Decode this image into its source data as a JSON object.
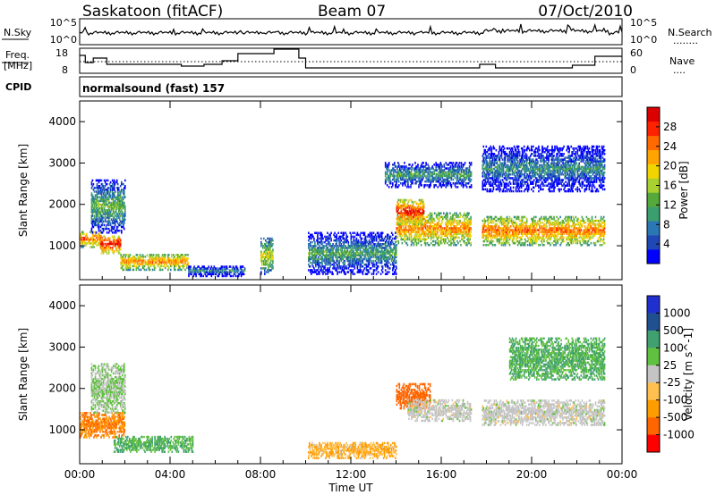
{
  "header": {
    "station": "Saskatoon (fitACF)",
    "beam": "Beam 07",
    "date": "07/Oct/2010"
  },
  "noise_panel": {
    "left_label": "N.Sky",
    "left_ticks": [
      "10^5",
      "10^0"
    ],
    "right_ticks": [
      "10^5",
      "10^0"
    ],
    "right_label": "N.Search",
    "right_legend": "........"
  },
  "freq_panel": {
    "left_label_1": "Freq.",
    "left_label_2": "[MHz]",
    "left_ticks": [
      "18",
      "8"
    ],
    "right_ticks": [
      "60",
      "0"
    ],
    "right_label": "Nave",
    "right_legend": "...."
  },
  "cpid": {
    "label": "CPID",
    "value": "normalsound (fast) 157"
  },
  "chart_data": [
    {
      "type": "heatmap",
      "quantity": "Power",
      "colorbar_label": "Power [dB]",
      "colorbar_ticks": [
        "28",
        "24",
        "20",
        "16",
        "12",
        "8",
        "4"
      ],
      "colorbar_range": [
        0,
        32
      ],
      "ylabel": "Slant Range [km]",
      "yticks": [
        "4000",
        "3000",
        "2000",
        "1000"
      ],
      "ylim": [
        180,
        4500
      ],
      "xlim": [
        0,
        24
      ],
      "data_gaps_hours": [
        [
          7.3,
          8.0
        ],
        [
          8.55,
          9.45
        ],
        [
          9.75,
          10.1
        ],
        [
          17.3,
          17.8
        ]
      ],
      "echo_regions": [
        {
          "t": [
            0,
            1.0
          ],
          "range": [
            950,
            1350
          ],
          "power": 26
        },
        {
          "t": [
            0.9,
            1.8
          ],
          "range": [
            800,
            1250
          ],
          "power": 29
        },
        {
          "t": [
            1.8,
            4.8
          ],
          "range": [
            400,
            800
          ],
          "power": 24
        },
        {
          "t": [
            0.5,
            2.0
          ],
          "range": [
            1300,
            2600
          ],
          "power": 14
        },
        {
          "t": [
            4.8,
            7.3
          ],
          "range": [
            250,
            500
          ],
          "power": 10
        },
        {
          "t": [
            8.0,
            8.55
          ],
          "range": [
            300,
            1200
          ],
          "power": 18
        },
        {
          "t": [
            10.1,
            14.0
          ],
          "range": [
            300,
            1300
          ],
          "power": 12
        },
        {
          "t": [
            14.0,
            17.3
          ],
          "range": [
            1000,
            1800
          ],
          "power": 24
        },
        {
          "t": [
            14.0,
            15.2
          ],
          "range": [
            1500,
            2100
          ],
          "power": 29
        },
        {
          "t": [
            13.5,
            17.3
          ],
          "range": [
            2400,
            3000
          ],
          "power": 12
        },
        {
          "t": [
            17.8,
            23.2
          ],
          "range": [
            1000,
            1700
          ],
          "power": 25
        },
        {
          "t": [
            17.8,
            23.2
          ],
          "range": [
            2300,
            3400
          ],
          "power": 10
        }
      ]
    },
    {
      "type": "heatmap",
      "quantity": "Velocity",
      "colorbar_label": "Velocity [m s^-1]",
      "colorbar_ticks": [
        "1000",
        "500",
        "100",
        "25",
        "-25",
        "-100",
        "-500",
        "-1000"
      ],
      "ylabel": "Slant Range [km]",
      "yticks": [
        "4000",
        "3000",
        "2000",
        "1000"
      ],
      "ylim": [
        180,
        4500
      ],
      "xlim": [
        0,
        24
      ],
      "xticks": [
        "00:00",
        "04:00",
        "08:00",
        "12:00",
        "16:00",
        "20:00",
        "00:00"
      ],
      "xlabel": "Time UT",
      "echo_regions": [
        {
          "t": [
            0,
            2.0
          ],
          "range": [
            800,
            1400
          ],
          "velocity": -100
        },
        {
          "t": [
            1.5,
            5.0
          ],
          "range": [
            450,
            850
          ],
          "velocity": 100
        },
        {
          "t": [
            0.5,
            2.0
          ],
          "range": [
            1400,
            2600
          ],
          "velocity": 25
        },
        {
          "t": [
            10.1,
            14.0
          ],
          "range": [
            300,
            700
          ],
          "velocity": -50
        },
        {
          "t": [
            14.0,
            15.5
          ],
          "range": [
            1500,
            2100
          ],
          "velocity": -400
        },
        {
          "t": [
            14.5,
            17.3
          ],
          "range": [
            1200,
            1700
          ],
          "velocity": 0
        },
        {
          "t": [
            17.8,
            23.2
          ],
          "range": [
            1100,
            1700
          ],
          "velocity": 0
        },
        {
          "t": [
            19.0,
            23.2
          ],
          "range": [
            2200,
            3200
          ],
          "velocity": 100
        }
      ]
    }
  ],
  "colors": {
    "power_scale": [
      "#0000ff",
      "#1f47b5",
      "#2a77b4",
      "#3b9e6e",
      "#55a83a",
      "#a8d030",
      "#f0d500",
      "#ffa400",
      "#ff6a00",
      "#ff2200",
      "#dd0000"
    ],
    "velocity_scale": [
      "#2030d0",
      "#205090",
      "#40a070",
      "#60c040",
      "#c4c4c4",
      "#ffc050",
      "#ff9c00",
      "#ff6600",
      "#ff0000"
    ]
  }
}
